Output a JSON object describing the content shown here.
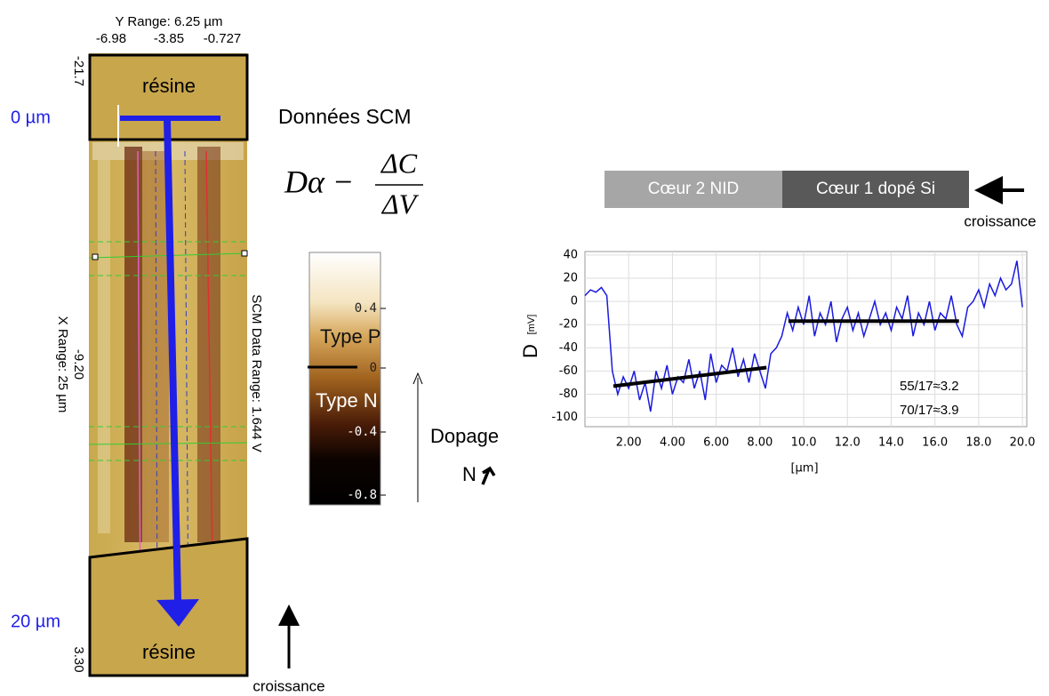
{
  "scm_image": {
    "y_range_label": "Y Range:  6.25 µm",
    "y_ticks": [
      "-6.98",
      "-3.85",
      "-0.727"
    ],
    "x_ticks": [
      "-21.7",
      "-9.20",
      "3.30"
    ],
    "x_range_label": "X Range: 25 µm",
    "data_range_label": "SCM Data Range:  1.644 V",
    "top_label": "résine",
    "bottom_label": "résine",
    "start_label": "0 µm",
    "end_label": "20 µm",
    "growth_label": "croissance"
  },
  "title": "Données SCM",
  "formula": {
    "lhs": "Dα −",
    "numerator": "ΔC",
    "denominator": "ΔV"
  },
  "colorbar": {
    "ticks": [
      "0.4",
      "0",
      "-0.4",
      "-0.8"
    ],
    "type_p": "Type P",
    "type_n": "Type N",
    "doping_label": "Dopage",
    "doping_type": "N"
  },
  "layer_bar": {
    "segments": [
      "Cœur 2 NID",
      "Cœur 1 dopé Si"
    ],
    "growth_label": "croissance"
  },
  "chart_data": {
    "type": "line",
    "y_label": "D",
    "y_unit": "[mV]",
    "x_label": "[µm]",
    "xlim": [
      0,
      20.2
    ],
    "ylim": [
      -108,
      43
    ],
    "xticks": [
      {
        "value": 2,
        "label": "2.00"
      },
      {
        "value": 4,
        "label": "4.00"
      },
      {
        "value": 6,
        "label": "6.00"
      },
      {
        "value": 8,
        "label": "8.00"
      },
      {
        "value": 10,
        "label": "10.0"
      },
      {
        "value": 12,
        "label": "12.0"
      },
      {
        "value": 14,
        "label": "14.0"
      },
      {
        "value": 16,
        "label": "16.0"
      },
      {
        "value": 18,
        "label": "18.0"
      },
      {
        "value": 20,
        "label": "20.0"
      }
    ],
    "yticks": [
      40,
      20,
      0,
      -20,
      -40,
      -60,
      -80,
      -100
    ],
    "grid": true,
    "x": [
      0,
      0.25,
      0.5,
      0.75,
      1,
      1.25,
      1.5,
      1.75,
      2,
      2.25,
      2.5,
      2.75,
      3,
      3.25,
      3.5,
      3.75,
      4,
      4.25,
      4.5,
      4.75,
      5,
      5.25,
      5.5,
      5.75,
      6,
      6.25,
      6.5,
      6.75,
      7,
      7.25,
      7.5,
      7.75,
      8,
      8.25,
      8.5,
      8.75,
      9,
      9.25,
      9.5,
      9.75,
      10,
      10.25,
      10.5,
      10.75,
      11,
      11.25,
      11.5,
      11.75,
      12,
      12.25,
      12.5,
      12.75,
      13,
      13.25,
      13.5,
      13.75,
      14,
      14.25,
      14.5,
      14.75,
      15,
      15.25,
      15.5,
      15.75,
      16,
      16.25,
      16.5,
      16.75,
      17,
      17.25,
      17.5,
      17.75,
      18,
      18.25,
      18.5,
      18.75,
      19,
      19.25,
      19.5,
      19.75,
      20
    ],
    "series": [
      {
        "color": "#1a1adf",
        "values": [
          5,
          10,
          8,
          12,
          5,
          -60,
          -80,
          -65,
          -75,
          -60,
          -85,
          -70,
          -95,
          -60,
          -75,
          -55,
          -80,
          -65,
          -70,
          -50,
          -75,
          -60,
          -85,
          -45,
          -70,
          -55,
          -60,
          -40,
          -65,
          -50,
          -70,
          -45,
          -60,
          -75,
          -45,
          -40,
          -30,
          -10,
          -25,
          -5,
          -20,
          5,
          -30,
          -10,
          -20,
          0,
          -35,
          -15,
          -5,
          -25,
          -10,
          -30,
          -15,
          0,
          -20,
          -10,
          -25,
          -5,
          -15,
          5,
          -30,
          -10,
          -20,
          0,
          -25,
          -10,
          -15,
          5,
          -20,
          -30,
          -5,
          0,
          10,
          -5,
          15,
          5,
          20,
          10,
          15,
          35,
          -5
        ]
      }
    ],
    "trend_lines": [
      {
        "x": [
          1.3,
          8.3
        ],
        "values": [
          -73,
          -57
        ]
      },
      {
        "x": [
          9.3,
          17.1
        ],
        "values": [
          -17,
          -17
        ]
      }
    ],
    "annotations": [
      "55/17≈3.2",
      "70/17≈3.9"
    ]
  }
}
